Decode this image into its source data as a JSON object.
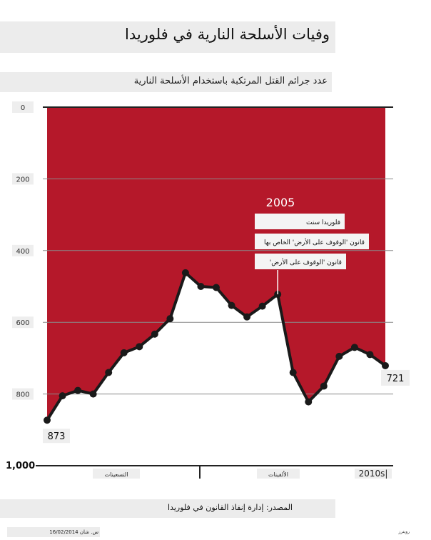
{
  "title": "وفيات الأسلحة النارية في فلوريدا",
  "subtitle": "عدد جرائم القتل المرتكبة باستخدام الأسلحة النارية",
  "source": "المصدر: إدارة إنفاذ القانون في فلوريدا",
  "credit": "س. شان 16/02/2014",
  "credit_right": "رويترز",
  "colors": {
    "fill": "#b5182a",
    "line": "#1a1a1a",
    "grid": "#8a8a8a",
    "label_bg": "#eeeeee"
  },
  "annotation": {
    "year": "2005",
    "lines": [
      "فلوريدا سنت",
      "قانون 'الوقوف على الأرض' الخاص بها",
      "قانون 'الوقوف على الأرض'"
    ]
  },
  "chart_data": {
    "type": "area",
    "title": "وفيات الأسلحة النارية في فلوريدا",
    "subtitle": "عدد جرائم القتل المرتكبة باستخدام الأسلحة النارية",
    "y_axis": {
      "min": 0,
      "max": 1000,
      "inverted": true,
      "ticks": [
        "0",
        "200",
        "400",
        "600",
        "800",
        "1,000"
      ],
      "tick_values": [
        0,
        200,
        400,
        600,
        800,
        1000
      ]
    },
    "x_axis": {
      "min": 1990,
      "max": 2012,
      "period_labels": [
        "التسعينات",
        "الألفينات",
        "2010s|"
      ]
    },
    "x": [
      1990,
      1991,
      1992,
      1993,
      1994,
      1995,
      1996,
      1997,
      1998,
      1999,
      2000,
      2001,
      2002,
      2003,
      2004,
      2005,
      2006,
      2007,
      2008,
      2009,
      2010,
      2011,
      2012
    ],
    "values": [
      873,
      805,
      790,
      800,
      740,
      685,
      668,
      633,
      590,
      462,
      500,
      503,
      553,
      585,
      555,
      522,
      740,
      822,
      778,
      695,
      670,
      690,
      721
    ],
    "labels": {
      "first": "873",
      "last": "721"
    },
    "grid": true
  }
}
